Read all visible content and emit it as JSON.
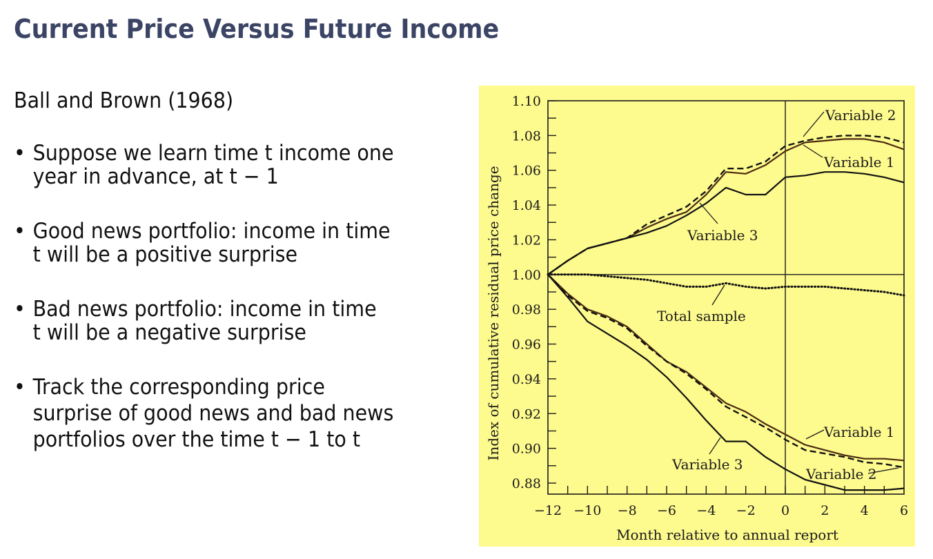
{
  "slide": {
    "title": "Current Price Versus Future Income",
    "subtitle": "Ball and Brown (1968)",
    "bullets": [
      {
        "line1": "Suppose we learn time t income one",
        "line2": "year in advance, at t − 1"
      },
      {
        "line1": "Good news portfolio: income in time",
        "line2": "t will be a positive surprise"
      },
      {
        "line1": "Bad news portfolio: income in time",
        "line2": "t will be a negative surprise"
      },
      {
        "line1": "Track the corresponding price",
        "line2": "surprise of good news and bad news",
        "line3": "portfolios over the time t − 1 to t"
      }
    ],
    "bullet_glyph": "•"
  },
  "colors": {
    "title": "#3b4465",
    "chart_background": "#fdfa8e",
    "line_dark": "#111111",
    "line_brown": "#4a2a10"
  },
  "chart_data": {
    "type": "line",
    "title": "",
    "xlabel": "Month relative to annual report",
    "ylabel": "Index of cumulative residual price change",
    "xlim": [
      -12,
      6
    ],
    "ylim": [
      0.87,
      1.1
    ],
    "x_ticks": [
      "−12",
      "−10",
      "−8",
      "−6",
      "−4",
      "−2",
      "0",
      "2",
      "4",
      "6"
    ],
    "y_ticks": [
      "1.10",
      "1.08",
      "1.06",
      "1.04",
      "1.02",
      "1.00",
      "0.98",
      "0.96",
      "0.94",
      "0.92",
      "0.90",
      "0.88"
    ],
    "grid": false,
    "reference_lines": {
      "horizontal": 1.0,
      "vertical": 0
    },
    "x": [
      -12,
      -11,
      -10,
      -9,
      -8,
      -7,
      -6,
      -5,
      -4,
      -3,
      -2,
      -1,
      0,
      1,
      2,
      3,
      4,
      5,
      6
    ],
    "series": [
      {
        "name": "Variable 1 (good news)",
        "style": "solid-brown",
        "values": [
          1.0,
          1.008,
          1.015,
          1.018,
          1.021,
          1.027,
          1.032,
          1.036,
          1.046,
          1.059,
          1.058,
          1.063,
          1.071,
          1.076,
          1.077,
          1.078,
          1.078,
          1.076,
          1.072
        ]
      },
      {
        "name": "Variable 2 (good news)",
        "style": "dashed",
        "values": [
          1.0,
          1.008,
          1.015,
          1.018,
          1.021,
          1.029,
          1.034,
          1.039,
          1.048,
          1.061,
          1.061,
          1.065,
          1.074,
          1.077,
          1.079,
          1.08,
          1.08,
          1.079,
          1.076
        ]
      },
      {
        "name": "Variable 3 (good news)",
        "style": "solid",
        "values": [
          1.0,
          1.008,
          1.015,
          1.018,
          1.021,
          1.024,
          1.028,
          1.034,
          1.041,
          1.05,
          1.046,
          1.046,
          1.056,
          1.057,
          1.059,
          1.059,
          1.058,
          1.056,
          1.053
        ]
      },
      {
        "name": "Total sample",
        "style": "dotted",
        "values": [
          1.0,
          1.0,
          1.0,
          0.999,
          0.998,
          0.997,
          0.995,
          0.993,
          0.993,
          0.995,
          0.993,
          0.992,
          0.993,
          0.993,
          0.993,
          0.992,
          0.991,
          0.99,
          0.988
        ]
      },
      {
        "name": "Variable 1 (bad news)",
        "style": "solid-brown",
        "values": [
          1.0,
          0.989,
          0.98,
          0.976,
          0.97,
          0.96,
          0.95,
          0.944,
          0.935,
          0.926,
          0.921,
          0.914,
          0.908,
          0.902,
          0.899,
          0.896,
          0.894,
          0.894,
          0.893
        ]
      },
      {
        "name": "Variable 2 (bad news)",
        "style": "dashed",
        "values": [
          1.0,
          0.988,
          0.979,
          0.975,
          0.969,
          0.959,
          0.95,
          0.943,
          0.934,
          0.924,
          0.918,
          0.912,
          0.905,
          0.899,
          0.897,
          0.895,
          0.892,
          0.891,
          0.889
        ]
      },
      {
        "name": "Variable 3 (bad news)",
        "style": "solid",
        "values": [
          1.0,
          0.987,
          0.973,
          0.966,
          0.959,
          0.951,
          0.941,
          0.929,
          0.916,
          0.904,
          0.904,
          0.895,
          0.888,
          0.882,
          0.879,
          0.876,
          0.876,
          0.876,
          0.877
        ]
      }
    ],
    "annotations": [
      {
        "text": "Variable 2",
        "near": "upper-right good news dashed"
      },
      {
        "text": "Variable 1",
        "near": "upper-right good news brown"
      },
      {
        "text": "Variable 3",
        "near": "good news lower solid, around month -3"
      },
      {
        "text": "Total sample",
        "near": "dotted line, around month -3"
      },
      {
        "text": "Variable 1",
        "near": "bad news brown, around month 1"
      },
      {
        "text": "Variable 2",
        "near": "bad news dashed, right end"
      },
      {
        "text": "Variable 3",
        "near": "bad news lowest solid, around month -3"
      }
    ],
    "legend": "none (inline annotations)"
  }
}
